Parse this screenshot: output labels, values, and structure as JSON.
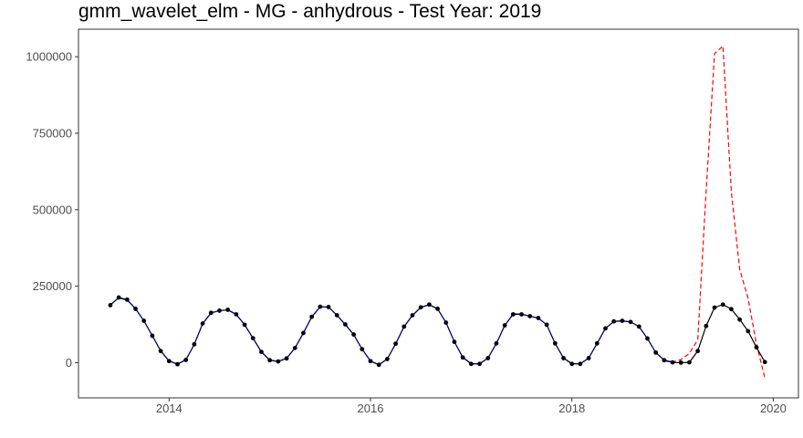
{
  "chart_data": {
    "type": "line",
    "title": "gmm_wavelet_elm - MG - anhydrous - Test Year: 2019",
    "xlabel": "",
    "ylabel": "",
    "xlim": [
      2013.1,
      2020.25
    ],
    "ylim": [
      -115000,
      1090000
    ],
    "grid": false,
    "legend": "none",
    "x_ticks": [
      2014,
      2016,
      2018,
      2020
    ],
    "x_tick_labels": [
      "2014",
      "2016",
      "2018",
      "2020"
    ],
    "y_ticks": [
      0,
      250000,
      500000,
      750000,
      1000000
    ],
    "y_tick_labels": [
      "0",
      "250000",
      "500000",
      "750000",
      "1000000"
    ],
    "colors": {
      "actual": "#000000",
      "fitted": "#00008b",
      "forecast": "#ff0000"
    },
    "series": [
      {
        "key": "actual",
        "style": "solid-with-points",
        "x_start": 2013.4167,
        "x_step": 0.083333,
        "values": [
          188000,
          213000,
          206000,
          176000,
          137000,
          88000,
          38000,
          5000,
          -5000,
          9000,
          60000,
          128000,
          163000,
          170000,
          173000,
          158000,
          124000,
          80000,
          35000,
          8000,
          4000,
          14000,
          48000,
          97000,
          150000,
          183000,
          182000,
          155000,
          125000,
          92000,
          44000,
          5000,
          -7000,
          12000,
          62000,
          118000,
          155000,
          181000,
          190000,
          176000,
          131000,
          68000,
          17000,
          -4000,
          -4000,
          15000,
          63000,
          122000,
          158000,
          158000,
          152000,
          146000,
          124000,
          63000,
          15000,
          -4000,
          -4000,
          15000,
          63000,
          112000,
          135000,
          137000,
          133000,
          118000,
          79000,
          33000,
          8000,
          1000,
          0,
          1000,
          38000,
          120000,
          180000,
          190000,
          175000,
          141000,
          103000,
          50000,
          2000
        ]
      },
      {
        "key": "fitted",
        "style": "solid",
        "x_start": 2013.4167,
        "x_step": 0.083333,
        "values": [
          190000,
          211000,
          204000,
          177000,
          136000,
          88000,
          39000,
          6000,
          -4000,
          10000,
          59000,
          127000,
          162000,
          170000,
          172000,
          157000,
          124000,
          80000,
          36000,
          9000,
          4000,
          15000,
          48000,
          96000,
          149000,
          182000,
          181000,
          155000,
          124000,
          91000,
          44000,
          6000,
          -6000,
          12000,
          61000,
          117000,
          154000,
          180000,
          189000,
          175000,
          131000,
          68000,
          18000,
          -3000,
          -3000,
          15000,
          62000,
          121000,
          160000,
          159000,
          152000,
          145000,
          124000,
          63000,
          16000,
          -3000,
          -3000,
          15000,
          62000,
          112000,
          134000,
          136000,
          133000,
          118000,
          79000,
          33000,
          9000,
          2000
        ]
      },
      {
        "key": "forecast",
        "style": "dashed",
        "x_start": 2018.9167,
        "x_step": 0.083333,
        "values": [
          5000,
          2000,
          10000,
          30000,
          75000,
          560000,
          1010000,
          1035000,
          560000,
          305000,
          210000,
          60000,
          -50000
        ]
      }
    ]
  }
}
